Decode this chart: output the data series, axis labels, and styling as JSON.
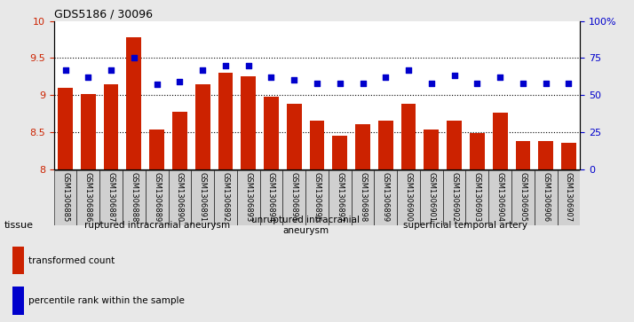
{
  "title": "GDS5186 / 30096",
  "samples": [
    "GSM1306885",
    "GSM1306886",
    "GSM1306887",
    "GSM1306888",
    "GSM1306889",
    "GSM1306890",
    "GSM1306891",
    "GSM1306892",
    "GSM1306893",
    "GSM1306894",
    "GSM1306895",
    "GSM1306896",
    "GSM1306897",
    "GSM1306898",
    "GSM1306899",
    "GSM1306900",
    "GSM1306901",
    "GSM1306902",
    "GSM1306903",
    "GSM1306904",
    "GSM1306905",
    "GSM1306906",
    "GSM1306907"
  ],
  "bar_values": [
    9.1,
    9.01,
    9.15,
    9.78,
    8.53,
    8.77,
    9.15,
    9.3,
    9.25,
    8.98,
    8.88,
    8.65,
    8.45,
    8.6,
    8.65,
    8.88,
    8.53,
    8.65,
    8.48,
    8.76,
    8.38,
    8.38,
    8.35
  ],
  "dot_percentiles": [
    67,
    62,
    67,
    75,
    57,
    59,
    67,
    70,
    70,
    62,
    60,
    58,
    58,
    58,
    62,
    67,
    58,
    63,
    58,
    62,
    58,
    58,
    58
  ],
  "bar_color": "#cc2200",
  "dot_color": "#0000cc",
  "ylim_left": [
    8.0,
    10.0
  ],
  "ylim_right": [
    0,
    100
  ],
  "yticks_left": [
    8.0,
    8.5,
    9.0,
    9.5,
    10.0
  ],
  "ytick_labels_left": [
    "8",
    "8.5",
    "9",
    "9.5",
    "10"
  ],
  "yticks_right": [
    0,
    25,
    50,
    75,
    100
  ],
  "ytick_labels_right": [
    "0",
    "25",
    "50",
    "75",
    "100%"
  ],
  "grid_values": [
    8.5,
    9.0,
    9.5
  ],
  "groups": [
    {
      "label": "ruptured intracranial aneurysm",
      "start": 0,
      "end": 9,
      "color": "#bbeeaa"
    },
    {
      "label": "unruptured intracranial\naneurysm",
      "start": 9,
      "end": 13,
      "color": "#ccffcc"
    },
    {
      "label": "superficial temporal artery",
      "start": 13,
      "end": 23,
      "color": "#33cc33"
    }
  ],
  "legend_bar_label": "transformed count",
  "legend_dot_label": "percentile rank within the sample",
  "tissue_label": "tissue",
  "background_color": "#e8e8e8",
  "plot_bg_color": "#ffffff",
  "label_cell_color": "#d0d0d0"
}
